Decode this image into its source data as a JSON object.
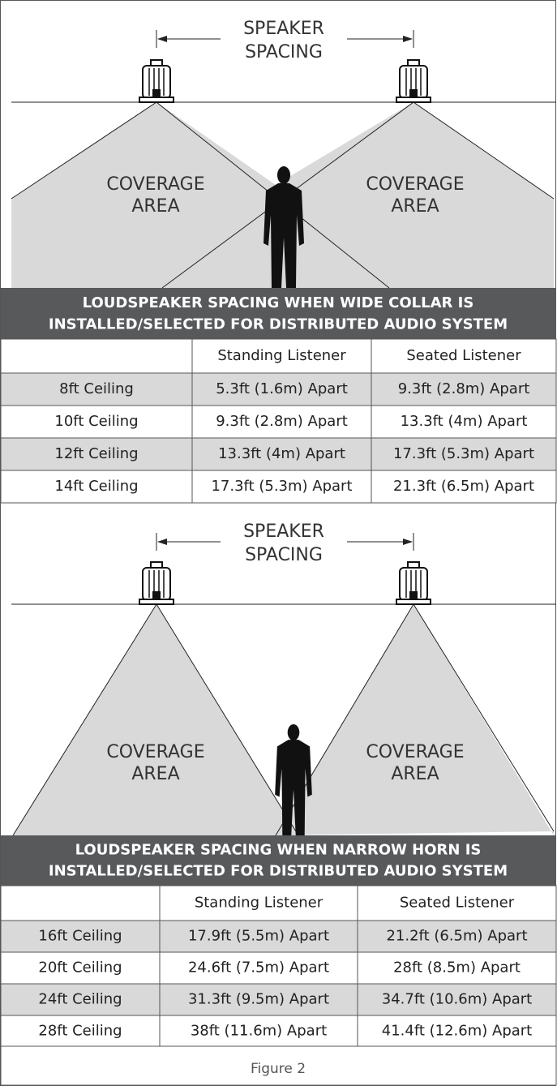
{
  "diagrams": [
    {
      "spacing_label": [
        "SPEAKER",
        "SPACING"
      ],
      "coverage_labels": [
        [
          "COVERAGE",
          "AREA"
        ],
        [
          "COVERAGE",
          "AREA"
        ]
      ],
      "title": [
        "LOUDSPEAKER SPACING WHEN WIDE COLLAR IS",
        "INSTALLED/SELECTED FOR DISTRIBUTED AUDIO SYSTEM"
      ],
      "table": {
        "header": [
          "Standing Listener",
          "Seated Listener"
        ],
        "rows": [
          [
            "8ft Ceiling",
            "5.3ft (1.6m) Apart",
            "9.3ft (2.8m) Apart"
          ],
          [
            "10ft Ceiling",
            "9.3ft (2.8m) Apart",
            "13.3ft (4m) Apart"
          ],
          [
            "12ft Ceiling",
            "13.3ft (4m) Apart",
            "17.3ft (5.3m) Apart"
          ],
          [
            "14ft Ceiling",
            "17.3ft (5.3m) Apart",
            "21.3ft (6.5m) Apart"
          ]
        ]
      }
    },
    {
      "spacing_label": [
        "SPEAKER",
        "SPACING"
      ],
      "coverage_labels": [
        [
          "COVERAGE",
          "AREA"
        ],
        [
          "COVERAGE",
          "AREA"
        ]
      ],
      "title": [
        "LOUDSPEAKER SPACING WHEN NARROW HORN IS",
        "INSTALLED/SELECTED FOR DISTRIBUTED AUDIO SYSTEM"
      ],
      "table": {
        "header": [
          "Standing Listener",
          "Seated Listener"
        ],
        "rows": [
          [
            "16ft Ceiling",
            "17.9ft (5.5m) Apart",
            "21.2ft (6.5m) Apart"
          ],
          [
            "20ft Ceiling",
            "24.6ft (7.5m) Apart",
            "28ft (8.5m) Apart"
          ],
          [
            "24ft Ceiling",
            "31.3ft (9.5m) Apart",
            "34.7ft (10.6m) Apart"
          ],
          [
            "28ft Ceiling",
            "38ft (11.6m) Apart",
            "41.4ft (12.6m) Apart"
          ]
        ]
      }
    }
  ],
  "caption": "Figure 2"
}
